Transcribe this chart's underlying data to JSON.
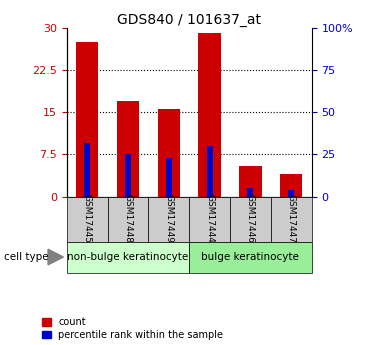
{
  "title": "GDS840 / 101637_at",
  "samples": [
    "GSM17445",
    "GSM17448",
    "GSM17449",
    "GSM17444",
    "GSM17446",
    "GSM17447"
  ],
  "count_values": [
    27.5,
    17.0,
    15.5,
    29.0,
    5.5,
    4.0
  ],
  "percentile_values": [
    32.0,
    25.0,
    23.0,
    30.0,
    5.0,
    4.0
  ],
  "ylim_left": [
    0,
    30
  ],
  "ylim_right": [
    0,
    100
  ],
  "yticks_left": [
    0,
    7.5,
    15,
    22.5,
    30
  ],
  "ytick_labels_left": [
    "0",
    "7.5",
    "15",
    "22.5",
    "30"
  ],
  "yticks_right": [
    0,
    25,
    50,
    75,
    100
  ],
  "ytick_labels_right": [
    "0",
    "25",
    "50",
    "75",
    "100%"
  ],
  "bar_color": "#cc0000",
  "percentile_color": "#0000cc",
  "bar_width": 0.55,
  "pct_bar_width": 0.15,
  "groups": [
    {
      "label": "non-bulge keratinocyte",
      "indices": [
        0,
        1,
        2
      ],
      "color": "#ccffcc"
    },
    {
      "label": "bulge keratinocyte",
      "indices": [
        3,
        4,
        5
      ],
      "color": "#99ee99"
    }
  ],
  "cell_type_label": "cell type",
  "legend_count": "count",
  "legend_percentile": "percentile rank within the sample",
  "background_color": "#ffffff",
  "tick_label_color_left": "#cc0000",
  "tick_label_color_right": "#0000cc",
  "xlabel_bg_color": "#cccccc",
  "grid_linestyle": ":",
  "grid_linewidth": 0.8,
  "grid_yticks": [
    7.5,
    15,
    22.5
  ]
}
